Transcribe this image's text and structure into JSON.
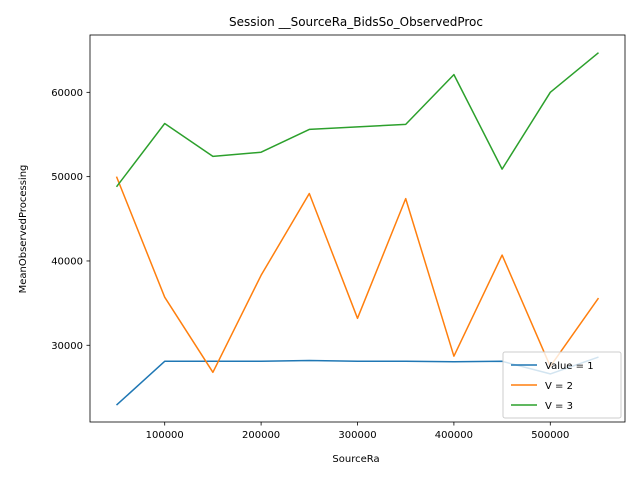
{
  "chart_data": {
    "type": "line",
    "title": "Session __SourceRa_BidsSo_ObservedProc",
    "xlabel": "SourceRa",
    "ylabel": "MeanObservedProcessing",
    "xlim": [
      22500,
      577500
    ],
    "ylim": [
      20900,
      66800
    ],
    "xticks": [
      100000,
      200000,
      300000,
      400000,
      500000
    ],
    "yticks": [
      30000,
      40000,
      50000,
      60000
    ],
    "xtick_labels": [
      "100000",
      "200000",
      "300000",
      "400000",
      "500000"
    ],
    "ytick_labels": [
      "30000",
      "40000",
      "50000",
      "60000"
    ],
    "grid": false,
    "legend_position": "lower-right",
    "x": [
      50000,
      100000,
      150000,
      200000,
      250000,
      300000,
      350000,
      400000,
      450000,
      500000,
      550000
    ],
    "series": [
      {
        "name": "Value = 1",
        "color": "#1f77b4",
        "values": [
          22900,
          28100,
          28100,
          28100,
          28200,
          28100,
          28100,
          28050,
          28100,
          26600,
          28600
        ]
      },
      {
        "name": "V = 2",
        "color": "#ff7f0e",
        "values": [
          50000,
          35700,
          26800,
          38300,
          48000,
          33200,
          47400,
          28700,
          40700,
          27500,
          35600
        ]
      },
      {
        "name": "V = 3",
        "color": "#2ca02c",
        "values": [
          48800,
          56300,
          52400,
          52900,
          55600,
          55900,
          56200,
          62100,
          50900,
          60000,
          64700
        ]
      }
    ]
  }
}
